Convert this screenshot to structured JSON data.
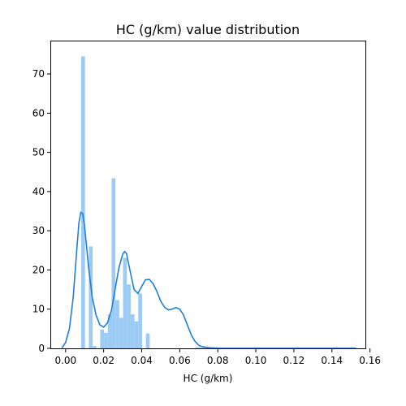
{
  "chart_data": {
    "type": "bar",
    "title": "HC (g/km) value distribution",
    "xlabel": "HC (g/km)",
    "ylabel": "",
    "xlim": [
      -0.0076,
      0.1576
    ],
    "ylim": [
      0,
      78.3
    ],
    "xticks": [
      0.0,
      0.02,
      0.04,
      0.06,
      0.08,
      0.1,
      0.12,
      0.14,
      0.16
    ],
    "xtick_labels": [
      "0.00",
      "0.02",
      "0.04",
      "0.06",
      "0.08",
      "0.10",
      "0.12",
      "0.14",
      "0.16"
    ],
    "yticks": [
      0,
      10,
      20,
      30,
      40,
      50,
      60,
      70
    ],
    "ytick_labels": [
      "0",
      "10",
      "20",
      "30",
      "40",
      "50",
      "60",
      "70"
    ],
    "bin_edges": [
      0.0082,
      0.0102,
      0.0122,
      0.0142,
      0.0162,
      0.0182,
      0.0202,
      0.0222,
      0.0242,
      0.0262,
      0.0282,
      0.0302,
      0.0322,
      0.0342,
      0.0362,
      0.0382,
      0.0402,
      0.0422,
      0.0442,
      0.0462,
      0.0482,
      0.0502,
      0.0522,
      0.0542,
      0.0562,
      0.0582,
      0.0602,
      0.0622,
      0.0642,
      0.0662,
      0.0682,
      0.1522
    ],
    "values": [
      74.5,
      0,
      26.0,
      0.6,
      0,
      4.8,
      4.0,
      8.7,
      43.4,
      12.3,
      7.8,
      23.1,
      16.3,
      8.7,
      6.9,
      14.0,
      0,
      3.8,
      0,
      0,
      0,
      0,
      0,
      0,
      0,
      0,
      0,
      0,
      0,
      0,
      0.2
    ],
    "bar_color": "#9ccbf5",
    "kde": {
      "color": "#1f7fdc",
      "points": [
        [
          -0.002,
          0.1
        ],
        [
          0.0,
          1.5
        ],
        [
          0.002,
          5.0
        ],
        [
          0.004,
          13.0
        ],
        [
          0.006,
          26.0
        ],
        [
          0.007,
          32.0
        ],
        [
          0.008,
          34.7
        ],
        [
          0.009,
          34.4
        ],
        [
          0.01,
          31.0
        ],
        [
          0.012,
          21.0
        ],
        [
          0.014,
          13.0
        ],
        [
          0.016,
          8.5
        ],
        [
          0.018,
          6.0
        ],
        [
          0.02,
          5.4
        ],
        [
          0.022,
          6.5
        ],
        [
          0.024,
          9.5
        ],
        [
          0.026,
          15.0
        ],
        [
          0.028,
          20.5
        ],
        [
          0.03,
          24.0
        ],
        [
          0.031,
          24.7
        ],
        [
          0.032,
          24.2
        ],
        [
          0.034,
          19.5
        ],
        [
          0.036,
          15.0
        ],
        [
          0.038,
          14.0
        ],
        [
          0.04,
          15.8
        ],
        [
          0.042,
          17.5
        ],
        [
          0.044,
          17.6
        ],
        [
          0.046,
          16.5
        ],
        [
          0.048,
          14.5
        ],
        [
          0.05,
          12.0
        ],
        [
          0.052,
          10.5
        ],
        [
          0.054,
          9.8
        ],
        [
          0.056,
          10.0
        ],
        [
          0.058,
          10.4
        ],
        [
          0.06,
          10.0
        ],
        [
          0.062,
          8.5
        ],
        [
          0.064,
          6.0
        ],
        [
          0.066,
          3.5
        ],
        [
          0.068,
          1.8
        ],
        [
          0.07,
          0.8
        ],
        [
          0.072,
          0.4
        ],
        [
          0.076,
          0.15
        ],
        [
          0.08,
          0.05
        ],
        [
          0.09,
          0.02
        ],
        [
          0.1,
          0.01
        ],
        [
          0.12,
          0.01
        ],
        [
          0.14,
          0.01
        ],
        [
          0.15,
          0.01
        ],
        [
          0.153,
          0.0
        ]
      ]
    },
    "grid": false,
    "legend": "none"
  }
}
